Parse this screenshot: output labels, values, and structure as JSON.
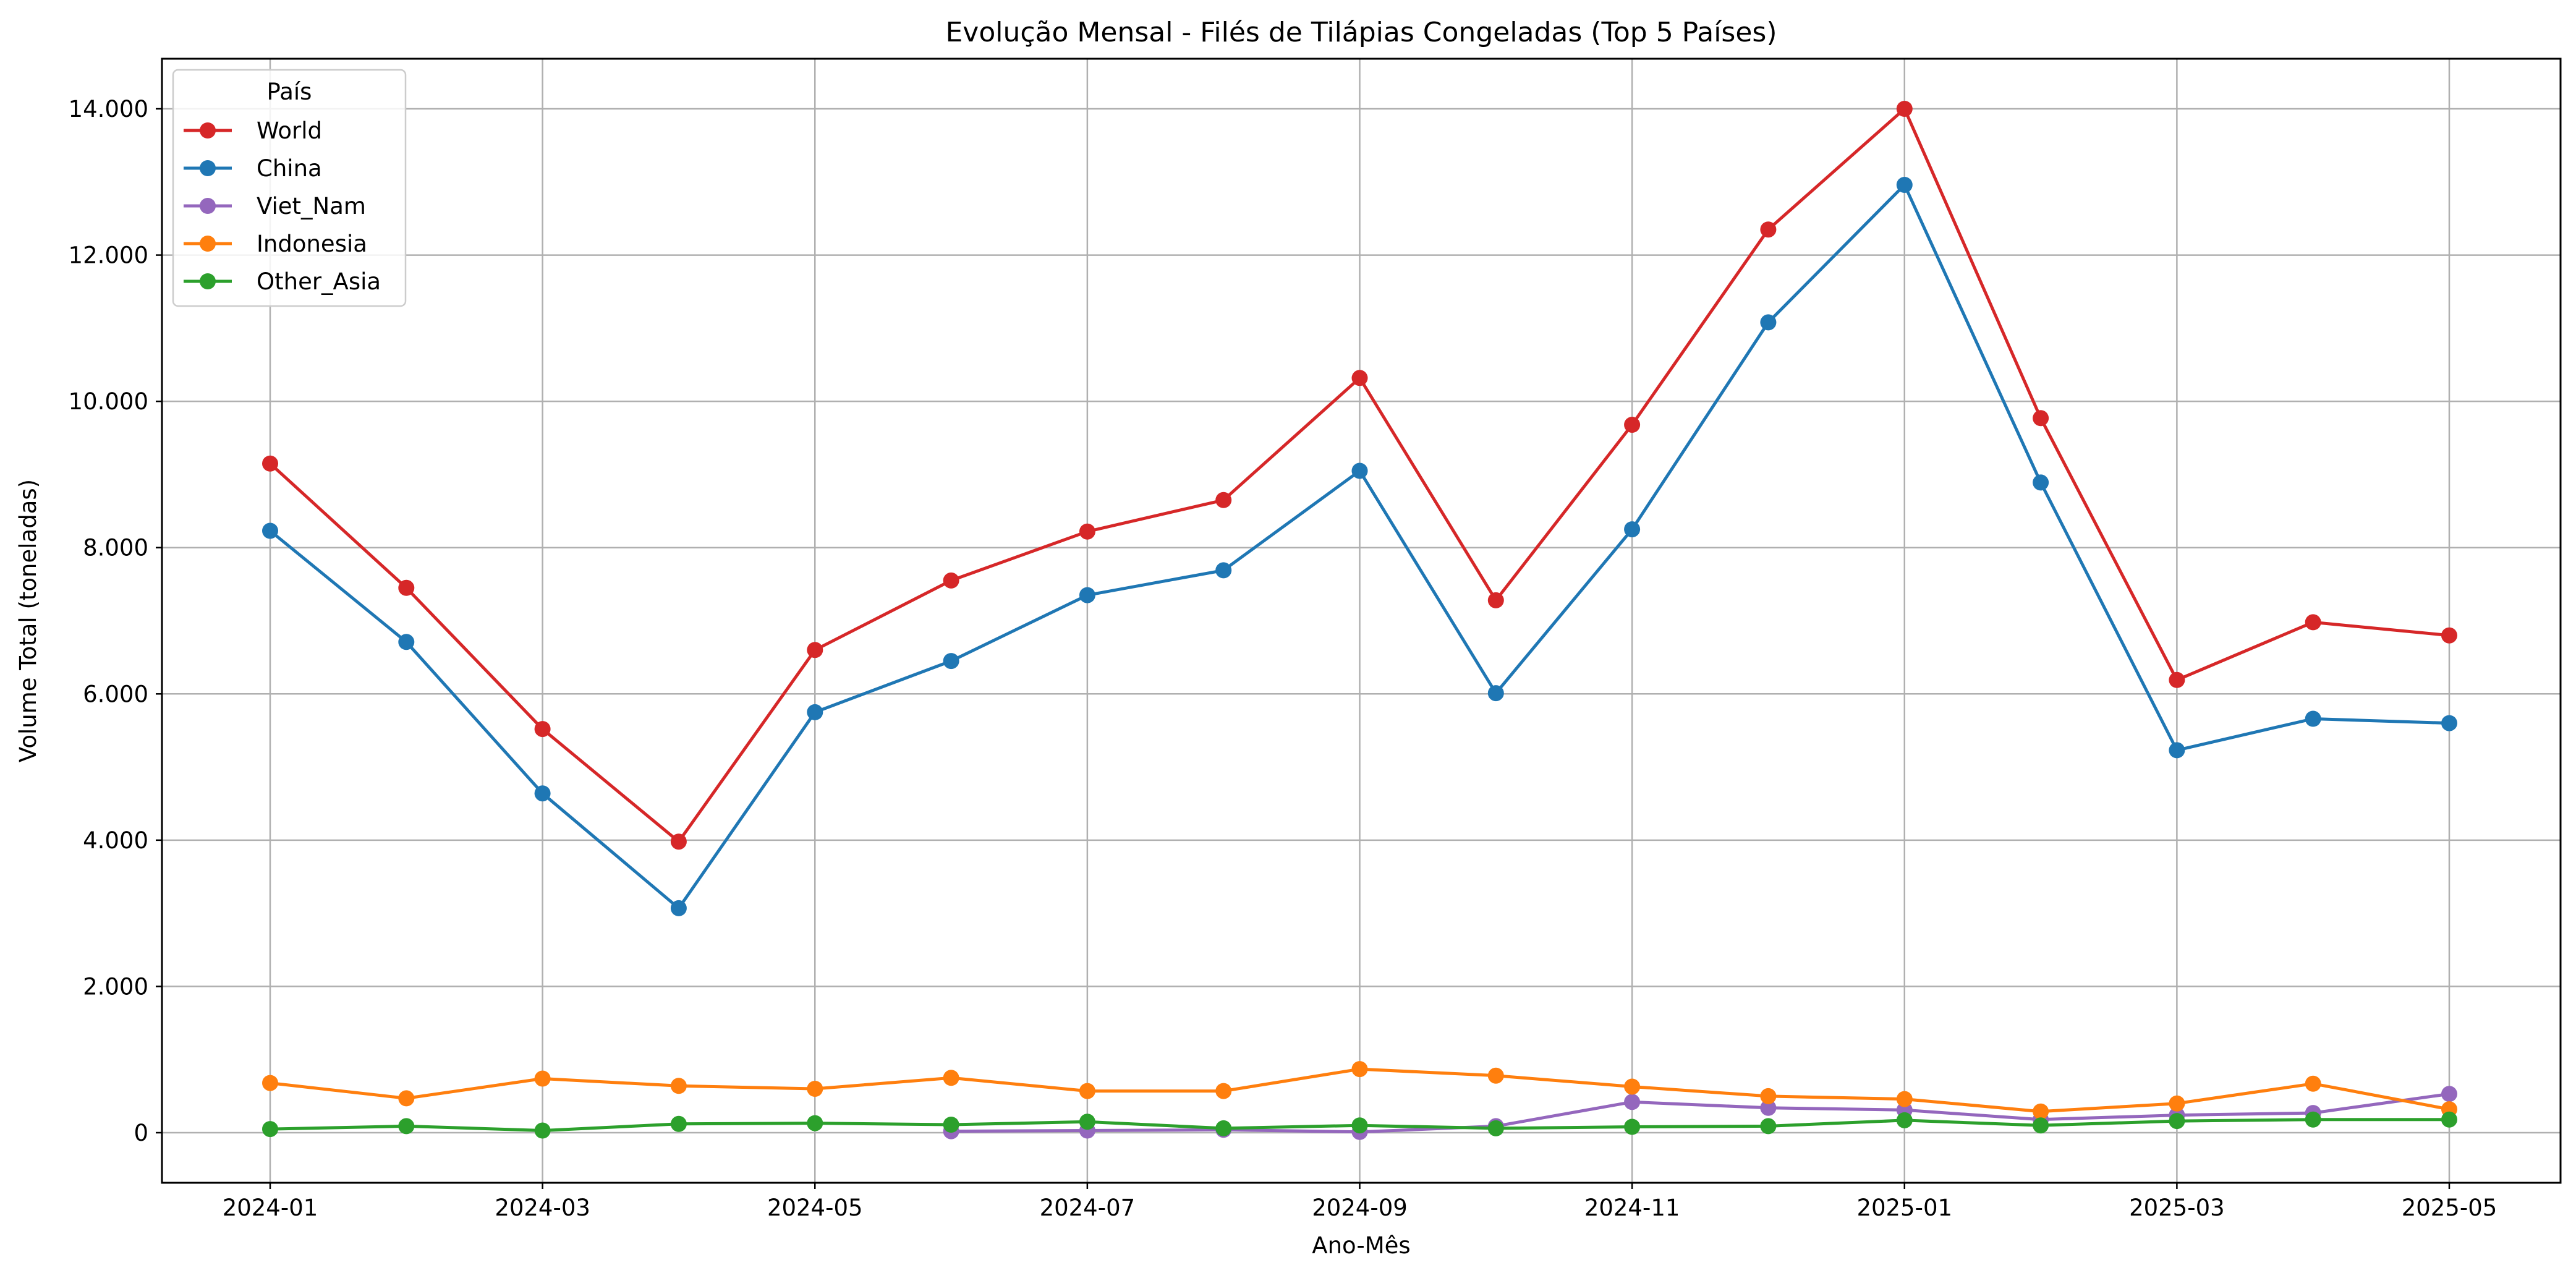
{
  "chart_data": {
    "type": "line",
    "title": "Evolução Mensal - Filés de Tilápias Congeladas (Top 5 Países)",
    "xlabel": "Ano-Mês",
    "ylabel": "Volume Total (toneladas)",
    "x": [
      "2024-01",
      "2024-02",
      "2024-03",
      "2024-04",
      "2024-05",
      "2024-06",
      "2024-07",
      "2024-08",
      "2024-09",
      "2024-10",
      "2024-11",
      "2024-12",
      "2025-01",
      "2025-02",
      "2025-03",
      "2025-04",
      "2025-05"
    ],
    "x_tick_labels": [
      "2024-01",
      "2024-03",
      "2024-05",
      "2024-07",
      "2024-09",
      "2024-11",
      "2025-01",
      "2025-03",
      "2025-05"
    ],
    "y_tick_labels": [
      "0",
      "2.000",
      "4.000",
      "6.000",
      "8.000",
      "10.000",
      "12.000",
      "14.000"
    ],
    "ylim": [
      -700,
      14700
    ],
    "grid": true,
    "legend": {
      "title": "País",
      "position": "top-left"
    },
    "series": [
      {
        "name": "World",
        "color": "#d62728",
        "values": [
          9150,
          7450,
          5520,
          3980,
          6600,
          7550,
          8220,
          8650,
          10320,
          7280,
          9680,
          12350,
          14000,
          9770,
          6190,
          6980,
          6800
        ]
      },
      {
        "name": "China",
        "color": "#1f77b4",
        "values": [
          8230,
          6710,
          4640,
          3070,
          5750,
          6450,
          7350,
          7690,
          9050,
          6010,
          8250,
          11080,
          12960,
          8890,
          5230,
          5660,
          5600
        ]
      },
      {
        "name": "Viet_Nam",
        "color": "#9467bd",
        "values": [
          null,
          null,
          null,
          null,
          null,
          20,
          30,
          40,
          10,
          90,
          420,
          340,
          310,
          180,
          240,
          270,
          530
        ]
      },
      {
        "name": "Indonesia",
        "color": "#ff7f0e",
        "values": [
          680,
          470,
          740,
          640,
          600,
          750,
          570,
          570,
          870,
          780,
          630,
          500,
          460,
          290,
          400,
          670,
          320
        ]
      },
      {
        "name": "Other_Asia",
        "color": "#2ca02c",
        "values": [
          50,
          90,
          30,
          120,
          130,
          110,
          150,
          60,
          100,
          60,
          80,
          90,
          170,
          100,
          160,
          180,
          180
        ]
      }
    ]
  }
}
